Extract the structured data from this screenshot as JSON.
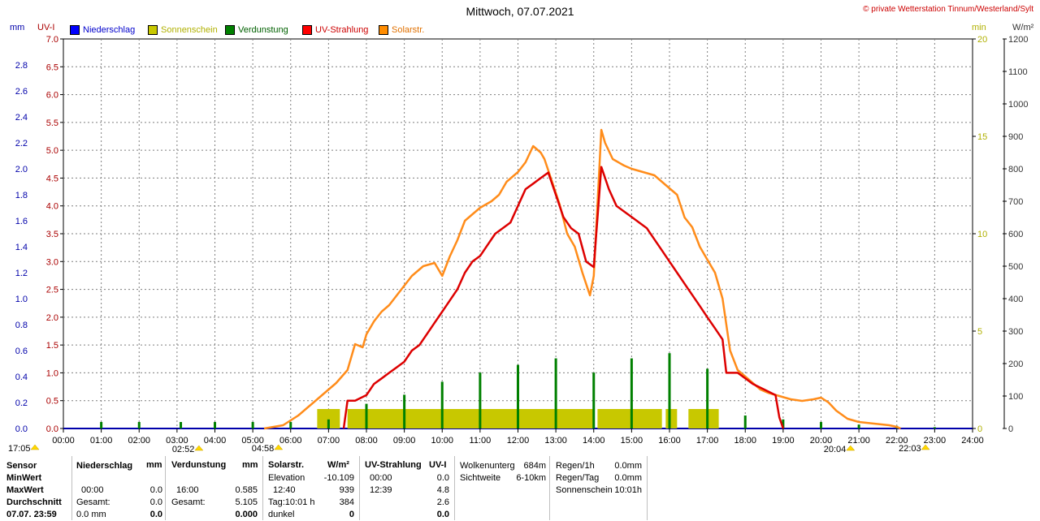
{
  "title": "Mittwoch, 07.07.2021",
  "copyright": "© private Wetterstation Tinnum/Westerland/Sylt",
  "units": {
    "mm": "mm",
    "uv": "UV-I",
    "min": "min",
    "wm2": "W/m²"
  },
  "legend": [
    {
      "label": "Niederschlag",
      "color": "#0000ff",
      "text_color": "#0000cc"
    },
    {
      "label": "Sonnenschein",
      "color": "#c8c800",
      "text_color": "#b0b000"
    },
    {
      "label": "Verdunstung",
      "color": "#008000",
      "text_color": "#006000"
    },
    {
      "label": "UV-Strahlung",
      "color": "#ff0000",
      "text_color": "#cc0000"
    },
    {
      "label": "Solarstr.",
      "color": "#ff8c00",
      "text_color": "#e07000"
    }
  ],
  "colors": {
    "grid": "#7f7f7f",
    "precip": "#0000ff",
    "sun": "#c8c800",
    "evap": "#008000",
    "uv": "#dd0000",
    "solar": "#ff8c1a",
    "axis_mm": "#0000aa",
    "axis_uv": "#aa0000",
    "axis_min": "#b0b000",
    "axis_wm2": "#333333"
  },
  "chart_data": {
    "type": "line",
    "x_range_hours": [
      0,
      24
    ],
    "x_ticks": [
      "00:00",
      "01:00",
      "02:00",
      "03:00",
      "04:00",
      "05:00",
      "06:00",
      "07:00",
      "08:00",
      "09:00",
      "10:00",
      "11:00",
      "12:00",
      "13:00",
      "14:00",
      "15:00",
      "16:00",
      "17:00",
      "18:00",
      "19:00",
      "20:00",
      "21:00",
      "22:00",
      "23:00",
      "24:00"
    ],
    "axes": {
      "mm": {
        "range": [
          0,
          3.0
        ],
        "ticks": [
          "0.0",
          "0.2",
          "0.4",
          "0.6",
          "0.8",
          "1.0",
          "1.2",
          "1.4",
          "1.6",
          "1.8",
          "2.0",
          "2.2",
          "2.4",
          "2.6",
          "2.8"
        ]
      },
      "uv": {
        "range": [
          0,
          7.0
        ],
        "ticks": [
          "0.0",
          "0.5",
          "1.0",
          "1.5",
          "2.0",
          "2.5",
          "3.0",
          "3.5",
          "4.0",
          "4.5",
          "5.0",
          "5.5",
          "6.0",
          "6.5",
          "7.0"
        ]
      },
      "min": {
        "range": [
          0,
          20
        ],
        "ticks": [
          "0",
          "5",
          "10",
          "15",
          "20"
        ]
      },
      "wm2": {
        "range": [
          0,
          1200
        ],
        "ticks": [
          "0",
          "100",
          "200",
          "300",
          "400",
          "500",
          "600",
          "700",
          "800",
          "900",
          "1000",
          "1100",
          "1200"
        ]
      }
    },
    "series": [
      {
        "name": "Solarstr.",
        "axis": "wm2",
        "points": [
          [
            5.3,
            0
          ],
          [
            5.8,
            10
          ],
          [
            6.2,
            40
          ],
          [
            6.5,
            70
          ],
          [
            6.8,
            100
          ],
          [
            7.2,
            140
          ],
          [
            7.5,
            180
          ],
          [
            7.7,
            260
          ],
          [
            7.9,
            250
          ],
          [
            8.0,
            290
          ],
          [
            8.2,
            330
          ],
          [
            8.4,
            360
          ],
          [
            8.6,
            380
          ],
          [
            8.8,
            410
          ],
          [
            9.0,
            440
          ],
          [
            9.2,
            470
          ],
          [
            9.5,
            500
          ],
          [
            9.8,
            510
          ],
          [
            10.0,
            470
          ],
          [
            10.2,
            530
          ],
          [
            10.4,
            580
          ],
          [
            10.6,
            640
          ],
          [
            10.8,
            660
          ],
          [
            11.0,
            680
          ],
          [
            11.3,
            700
          ],
          [
            11.5,
            720
          ],
          [
            11.7,
            760
          ],
          [
            11.9,
            780
          ],
          [
            12.0,
            790
          ],
          [
            12.2,
            820
          ],
          [
            12.4,
            870
          ],
          [
            12.6,
            850
          ],
          [
            12.7,
            830
          ],
          [
            12.9,
            760
          ],
          [
            13.1,
            690
          ],
          [
            13.3,
            600
          ],
          [
            13.5,
            560
          ],
          [
            13.7,
            480
          ],
          [
            13.9,
            410
          ],
          [
            14.0,
            470
          ],
          [
            14.2,
            920
          ],
          [
            14.3,
            880
          ],
          [
            14.5,
            830
          ],
          [
            14.8,
            810
          ],
          [
            15.0,
            800
          ],
          [
            15.3,
            790
          ],
          [
            15.6,
            780
          ],
          [
            15.9,
            750
          ],
          [
            16.2,
            720
          ],
          [
            16.4,
            650
          ],
          [
            16.6,
            620
          ],
          [
            16.8,
            560
          ],
          [
            17.0,
            520
          ],
          [
            17.2,
            480
          ],
          [
            17.4,
            400
          ],
          [
            17.6,
            240
          ],
          [
            17.8,
            180
          ],
          [
            18.0,
            160
          ],
          [
            18.2,
            140
          ],
          [
            18.4,
            120
          ],
          [
            18.6,
            110
          ],
          [
            18.9,
            100
          ],
          [
            19.2,
            90
          ],
          [
            19.5,
            85
          ],
          [
            19.8,
            90
          ],
          [
            20.0,
            95
          ],
          [
            20.2,
            80
          ],
          [
            20.4,
            55
          ],
          [
            20.7,
            30
          ],
          [
            21.0,
            20
          ],
          [
            21.4,
            15
          ],
          [
            21.8,
            10
          ],
          [
            22.0,
            5
          ],
          [
            22.1,
            0
          ]
        ]
      },
      {
        "name": "UV-Strahlung",
        "axis": "uv",
        "points": [
          [
            7.4,
            0
          ],
          [
            7.5,
            0.5
          ],
          [
            7.7,
            0.5
          ],
          [
            8.0,
            0.6
          ],
          [
            8.2,
            0.8
          ],
          [
            8.4,
            0.9
          ],
          [
            8.6,
            1.0
          ],
          [
            8.8,
            1.1
          ],
          [
            9.0,
            1.2
          ],
          [
            9.2,
            1.4
          ],
          [
            9.4,
            1.5
          ],
          [
            9.6,
            1.7
          ],
          [
            9.8,
            1.9
          ],
          [
            10.0,
            2.1
          ],
          [
            10.2,
            2.3
          ],
          [
            10.4,
            2.5
          ],
          [
            10.6,
            2.8
          ],
          [
            10.8,
            3.0
          ],
          [
            11.0,
            3.1
          ],
          [
            11.2,
            3.3
          ],
          [
            11.4,
            3.5
          ],
          [
            11.6,
            3.6
          ],
          [
            11.8,
            3.7
          ],
          [
            12.0,
            4.0
          ],
          [
            12.2,
            4.3
          ],
          [
            12.4,
            4.4
          ],
          [
            12.6,
            4.5
          ],
          [
            12.8,
            4.6
          ],
          [
            13.0,
            4.2
          ],
          [
            13.2,
            3.8
          ],
          [
            13.4,
            3.6
          ],
          [
            13.6,
            3.5
          ],
          [
            13.8,
            3.0
          ],
          [
            14.0,
            2.9
          ],
          [
            14.2,
            4.7
          ],
          [
            14.4,
            4.3
          ],
          [
            14.6,
            4.0
          ],
          [
            14.8,
            3.9
          ],
          [
            15.0,
            3.8
          ],
          [
            15.2,
            3.7
          ],
          [
            15.4,
            3.6
          ],
          [
            15.6,
            3.4
          ],
          [
            15.8,
            3.2
          ],
          [
            16.0,
            3.0
          ],
          [
            16.2,
            2.8
          ],
          [
            16.4,
            2.6
          ],
          [
            16.6,
            2.4
          ],
          [
            16.8,
            2.2
          ],
          [
            17.0,
            2.0
          ],
          [
            17.2,
            1.8
          ],
          [
            17.4,
            1.6
          ],
          [
            17.5,
            1.0
          ],
          [
            17.8,
            1.0
          ],
          [
            18.0,
            0.9
          ],
          [
            18.2,
            0.8
          ],
          [
            18.5,
            0.7
          ],
          [
            18.8,
            0.6
          ],
          [
            18.9,
            0.2
          ],
          [
            19.0,
            0
          ]
        ]
      }
    ],
    "sunshine_blocks_min": [
      [
        6.7,
        7.3,
        1.0
      ],
      [
        7.5,
        14.0,
        1.0
      ],
      [
        14.1,
        15.8,
        1.0
      ],
      [
        15.9,
        16.2,
        1.0
      ],
      [
        16.5,
        17.3,
        1.0
      ]
    ],
    "evaporation_spikes_mm": [
      [
        1.0,
        0.05
      ],
      [
        2.0,
        0.05
      ],
      [
        3.1,
        0.05
      ],
      [
        4.0,
        0.05
      ],
      [
        5.0,
        0.05
      ],
      [
        6.0,
        0.05
      ],
      [
        7.0,
        0.07
      ],
      [
        8.0,
        0.19
      ],
      [
        9.0,
        0.26
      ],
      [
        10.0,
        0.36
      ],
      [
        11.0,
        0.43
      ],
      [
        12.0,
        0.49
      ],
      [
        13.0,
        0.54
      ],
      [
        14.0,
        0.43
      ],
      [
        15.0,
        0.54
      ],
      [
        16.0,
        0.58
      ],
      [
        17.0,
        0.46
      ],
      [
        18.0,
        0.1
      ],
      [
        19.0,
        0.07
      ],
      [
        20.0,
        0.05
      ],
      [
        21.0,
        0.03
      ],
      [
        22.0,
        0.02
      ],
      [
        23.0,
        0.01
      ]
    ],
    "marker_times": [
      {
        "label": "17:05",
        "hour": 0,
        "row": 1
      },
      {
        "label": "02:52",
        "hour": 2.87,
        "row": 2
      },
      {
        "label": "04:58",
        "hour": 4.97,
        "row": 1
      },
      {
        "label": "20:04",
        "hour": 20.07,
        "row": 2
      },
      {
        "label": "22:03",
        "hour": 22.05,
        "row": 1
      }
    ]
  },
  "table": {
    "row_labels": [
      "Sensor",
      "MinWert",
      "MaxWert",
      "Durchschnitt",
      "07.07. 23:59"
    ],
    "niederschlag": {
      "header": "Niederschlag",
      "unit": "mm",
      "rows": [
        [
          "",
          ""
        ],
        [
          "00:00",
          "0.0"
        ],
        [
          "Gesamt:",
          "0.0"
        ],
        [
          "0.0 mm",
          "0.0"
        ]
      ]
    },
    "verdunstung": {
      "header": "Verdunstung",
      "unit": "mm",
      "rows": [
        [
          "",
          ""
        ],
        [
          "16:00",
          "0.585"
        ],
        [
          "Gesamt:",
          "5.105"
        ],
        [
          "",
          "0.000"
        ]
      ]
    },
    "solar": {
      "header": "Solarstr.",
      "unit": "W/m²",
      "rows": [
        [
          "Elevation",
          "-10.109"
        ],
        [
          "12:40",
          "939"
        ],
        [
          "Tag:10:01 h",
          "384"
        ],
        [
          "dunkel",
          "0"
        ]
      ]
    },
    "uv": {
      "header": "UV-Strahlung",
      "unit": "UV-I",
      "rows": [
        [
          "00:00",
          "0.0"
        ],
        [
          "12:39",
          "4.8"
        ],
        [
          "",
          "2.6"
        ],
        [
          "",
          "0.0"
        ]
      ]
    },
    "wolken": {
      "rows": [
        [
          "Wolkenunterg",
          "684m"
        ],
        [
          "Sichtweite",
          "6-10km"
        ]
      ]
    },
    "regen": {
      "rows": [
        [
          "Regen/1h",
          "0.0mm"
        ],
        [
          "Regen/Tag",
          "0.0mm"
        ],
        [
          "Sonnenschein",
          "10:01h"
        ]
      ]
    }
  }
}
